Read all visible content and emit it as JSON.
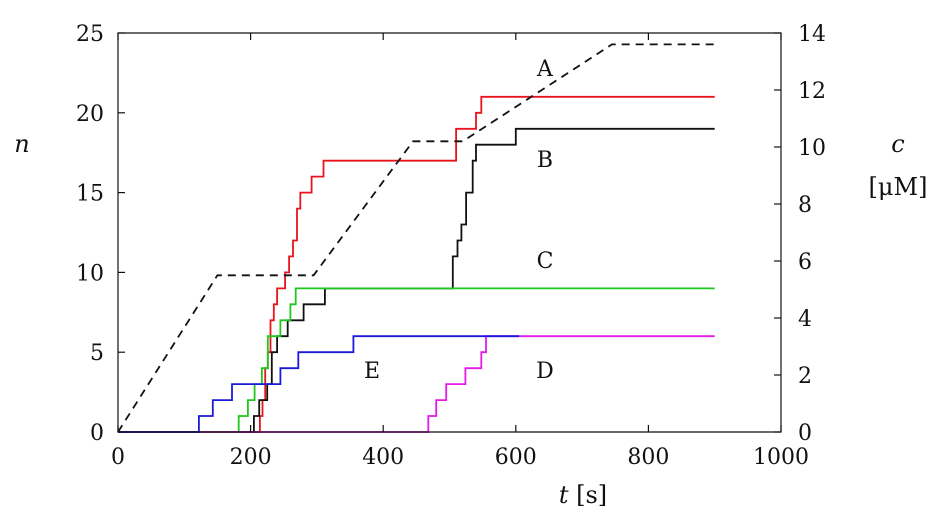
{
  "chart_data": {
    "type": "line",
    "step": true,
    "xlabel": {
      "var": "t",
      "unit": "[s]"
    },
    "ylabel_left": "n",
    "ylabel_right": {
      "var": "c",
      "unit": "[μM]"
    },
    "xlim": [
      0,
      1000
    ],
    "ylim_left": [
      0,
      25
    ],
    "ylim_right": [
      0,
      14
    ],
    "x_ticks": [
      0,
      200,
      400,
      600,
      800,
      1000
    ],
    "y_left_ticks": [
      0,
      5,
      10,
      15,
      20,
      25
    ],
    "y_right_ticks": [
      0,
      2,
      4,
      6,
      8,
      10,
      12,
      14
    ],
    "grid": false,
    "series": [
      {
        "name": "A",
        "axis": "left",
        "color": "#e8141c",
        "label_at": [
          806,
          75
        ],
        "points": [
          [
            0,
            0
          ],
          [
            210,
            0
          ],
          [
            214,
            1
          ],
          [
            218,
            2
          ],
          [
            222,
            4
          ],
          [
            226,
            5
          ],
          [
            230,
            7
          ],
          [
            235,
            8
          ],
          [
            240,
            9
          ],
          [
            252,
            10
          ],
          [
            258,
            11
          ],
          [
            264,
            12
          ],
          [
            270,
            14
          ],
          [
            275,
            15
          ],
          [
            292,
            16
          ],
          [
            310,
            17
          ],
          [
            505,
            17
          ],
          [
            510,
            19
          ],
          [
            540,
            20
          ],
          [
            548,
            21
          ],
          [
            900,
            21
          ]
        ]
      },
      {
        "name": "B",
        "axis": "left",
        "color": "#111111",
        "label_at": [
          806,
          165
        ],
        "points": [
          [
            0,
            0
          ],
          [
            200,
            0
          ],
          [
            205,
            1
          ],
          [
            213,
            2
          ],
          [
            225,
            3
          ],
          [
            232,
            5
          ],
          [
            240,
            6
          ],
          [
            256,
            7
          ],
          [
            280,
            8
          ],
          [
            312,
            9
          ],
          [
            500,
            9
          ],
          [
            505,
            11
          ],
          [
            512,
            12
          ],
          [
            518,
            13
          ],
          [
            525,
            15
          ],
          [
            535,
            17
          ],
          [
            540,
            18
          ],
          [
            588,
            18
          ],
          [
            600,
            19
          ],
          [
            900,
            19
          ]
        ]
      },
      {
        "name": "C",
        "axis": "left",
        "color": "#1ec81e",
        "label_at": [
          806,
          268
        ],
        "points": [
          [
            0,
            0
          ],
          [
            178,
            0
          ],
          [
            182,
            1
          ],
          [
            196,
            2
          ],
          [
            206,
            3
          ],
          [
            217,
            4
          ],
          [
            226,
            6
          ],
          [
            245,
            7
          ],
          [
            260,
            8
          ],
          [
            268,
            9
          ],
          [
            900,
            9
          ]
        ]
      },
      {
        "name": "D",
        "axis": "left",
        "color": "#e619e6",
        "label_at": [
          806,
          378
        ],
        "points": [
          [
            0,
            0
          ],
          [
            462,
            0
          ],
          [
            468,
            1
          ],
          [
            480,
            2
          ],
          [
            495,
            3
          ],
          [
            524,
            4
          ],
          [
            548,
            5
          ],
          [
            555,
            6
          ],
          [
            900,
            6
          ]
        ]
      },
      {
        "name": "E",
        "axis": "left",
        "color": "#1a1ad8",
        "label_at": [
          536,
          378
        ],
        "points": [
          [
            0,
            0
          ],
          [
            115,
            0
          ],
          [
            122,
            1
          ],
          [
            143,
            2
          ],
          [
            172,
            3
          ],
          [
            245,
            4
          ],
          [
            272,
            5
          ],
          [
            295,
            5
          ],
          [
            355,
            6
          ],
          [
            605,
            6
          ]
        ]
      },
      {
        "name": "",
        "axis": "right",
        "color": "#111111",
        "dashed": true,
        "points": [
          [
            0,
            0
          ],
          [
            150,
            5.5
          ],
          [
            295,
            5.5
          ],
          [
            445,
            10.2
          ],
          [
            520,
            10.2
          ],
          [
            745,
            13.6
          ],
          [
            900,
            13.6
          ]
        ]
      }
    ]
  }
}
